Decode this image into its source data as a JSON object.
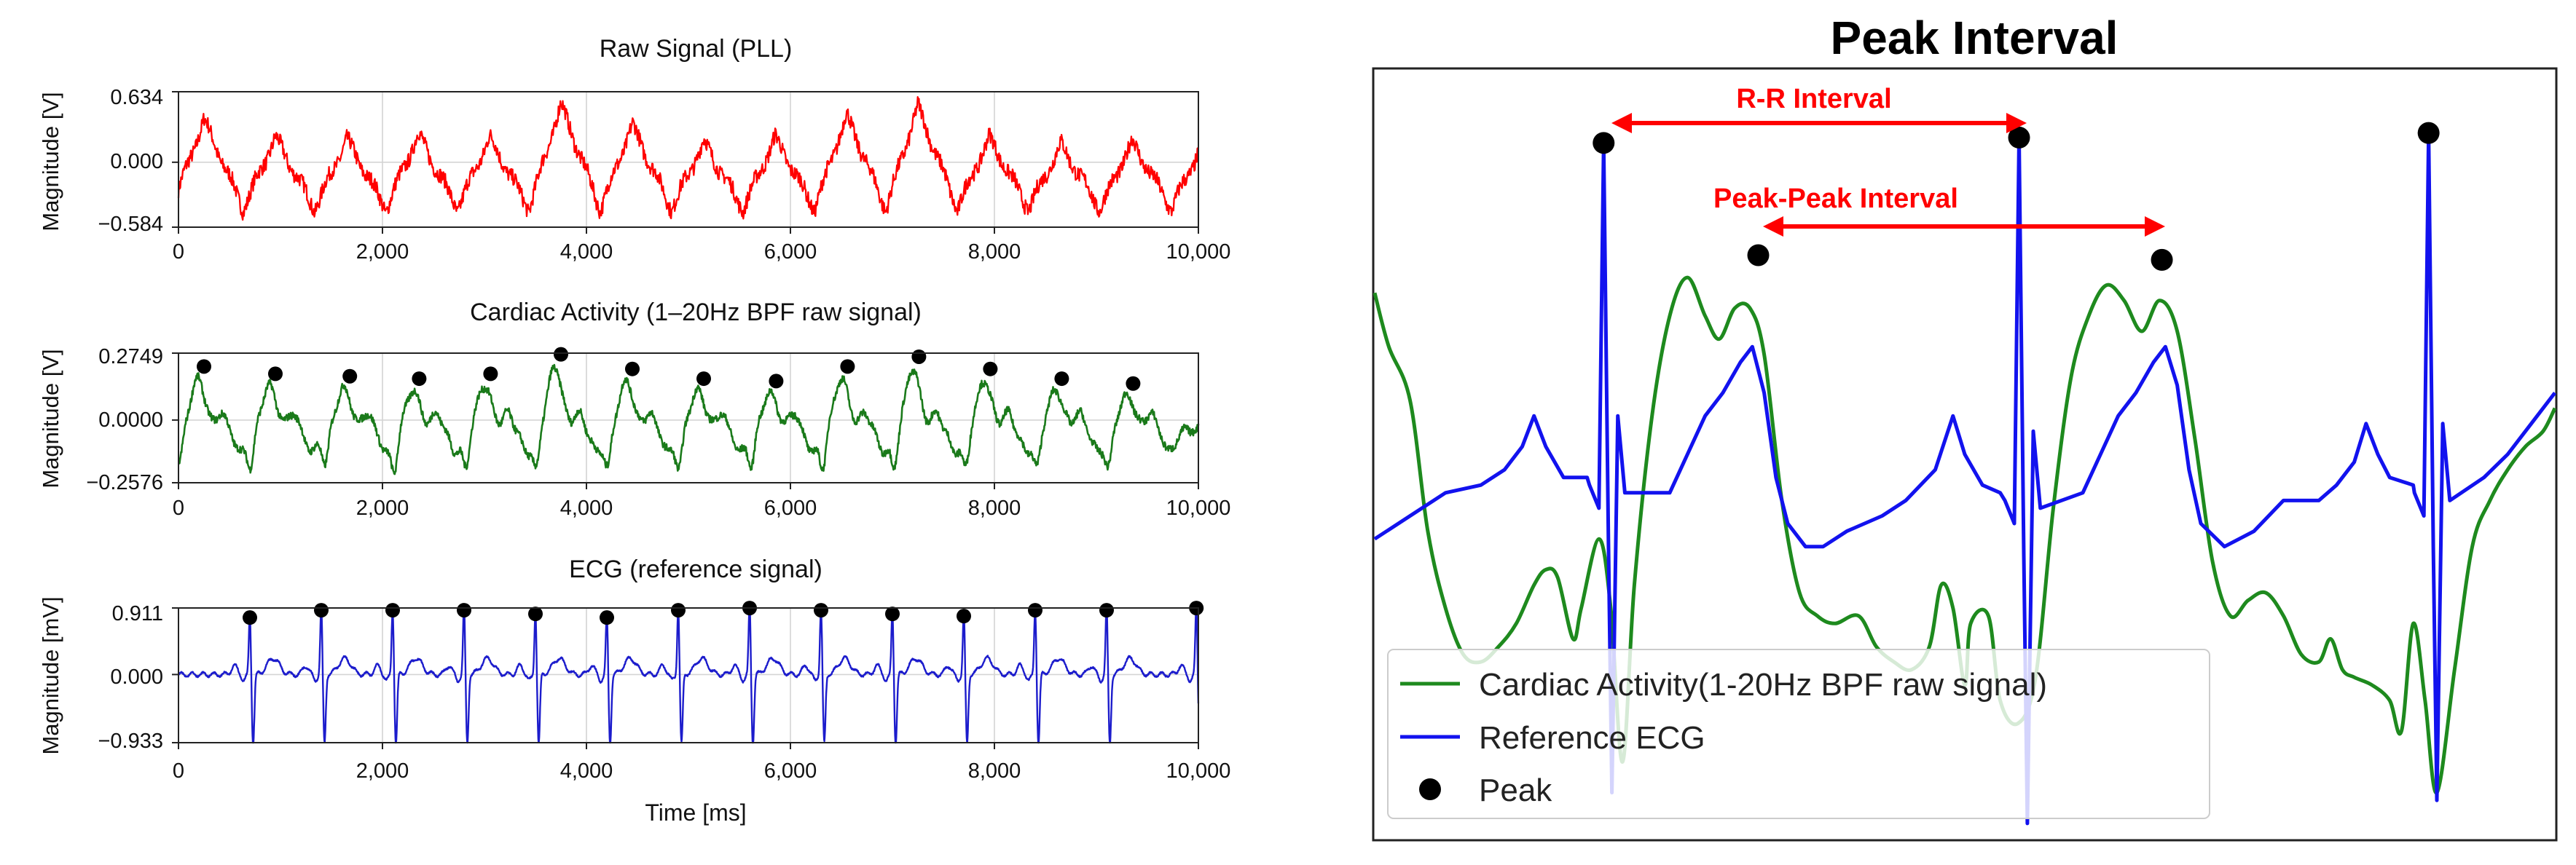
{
  "chart_data": [
    {
      "type": "line",
      "title": "Raw Signal (PLL)",
      "ylabel": "Magnitude [V]",
      "xlabel": "",
      "xlim": [
        0,
        10000
      ],
      "ylim": [
        -0.584,
        0.634
      ],
      "xticks": [
        0,
        2000,
        4000,
        6000,
        8000,
        10000
      ],
      "xtick_labels": [
        "0",
        "2,000",
        "4,000",
        "6,000",
        "8,000",
        "10,000"
      ],
      "yticks": [
        0.634,
        0.0,
        -0.584
      ],
      "ytick_labels": [
        "0.634",
        "0.000",
        "−0.584"
      ],
      "grid": true,
      "series": [
        {
          "name": "Raw Signal",
          "color": "#ff0000",
          "beat_times": [
            250,
            950,
            1650,
            2350,
            3050,
            3750,
            4450,
            5150,
            5850,
            6550,
            7250,
            7950,
            8650,
            9350
          ],
          "beat_amps": [
            0.38,
            0.22,
            0.2,
            0.25,
            0.22,
            0.52,
            0.33,
            0.18,
            0.22,
            0.42,
            0.5,
            0.22,
            0.16,
            0.18
          ],
          "trough": -0.42,
          "noise": 0.07
        }
      ]
    },
    {
      "type": "line",
      "title": "Cardiac Activity (1–20Hz BPF raw signal)",
      "ylabel": "Magnitude [V]",
      "xlabel": "",
      "xlim": [
        0,
        10000
      ],
      "ylim": [
        -0.2576,
        0.2749
      ],
      "xticks": [
        0,
        2000,
        4000,
        6000,
        8000,
        10000
      ],
      "xtick_labels": [
        "0",
        "2,000",
        "4,000",
        "6,000",
        "8,000",
        "10,000"
      ],
      "yticks": [
        0.2749,
        0.0,
        -0.2576
      ],
      "ytick_labels": [
        "0.2749",
        "0.0000",
        "−0.2576"
      ],
      "grid": true,
      "series": [
        {
          "name": "Cardiac Activity",
          "color": "#1a7a1a",
          "peaks_x": [
            250,
            950,
            1680,
            2360,
            3060,
            3750,
            4450,
            5150,
            5860,
            6560,
            7260,
            7960,
            8660,
            9360
          ],
          "peaks_y": [
            0.22,
            0.19,
            0.18,
            0.17,
            0.19,
            0.27,
            0.21,
            0.17,
            0.16,
            0.22,
            0.26,
            0.21,
            0.17,
            0.15
          ]
        }
      ]
    },
    {
      "type": "line",
      "title": "ECG (reference signal)",
      "ylabel": "Magnitude [mV]",
      "xlabel": "Time [ms]",
      "xlim": [
        0,
        10000
      ],
      "ylim": [
        -0.933,
        0.911
      ],
      "xticks": [
        0,
        2000,
        4000,
        6000,
        8000,
        10000
      ],
      "xtick_labels": [
        "0",
        "2,000",
        "4,000",
        "6,000",
        "8,000",
        "10,000"
      ],
      "yticks": [
        0.911,
        0.0,
        -0.933
      ],
      "ytick_labels": [
        "0.911",
        "0.000",
        "−0.933"
      ],
      "grid": true,
      "series": [
        {
          "name": "ECG",
          "color": "#1c1ccc",
          "peaks_x": [
            700,
            1400,
            2100,
            2800,
            3500,
            4200,
            4900,
            5600,
            6300,
            7000,
            7700,
            8400,
            9100,
            9980
          ],
          "peaks_y": [
            0.78,
            0.88,
            0.88,
            0.88,
            0.83,
            0.78,
            0.88,
            0.91,
            0.88,
            0.83,
            0.8,
            0.88,
            0.88,
            0.91
          ]
        }
      ]
    },
    {
      "type": "line",
      "title": "Peak Interval",
      "annotations": [
        "R-R Interval",
        "Peak-Peak Interval"
      ],
      "legend": [
        "Cardiac Activity(1-20Hz BPF raw signal)",
        "Reference ECG",
        "Peak"
      ],
      "legend_position": "bottom-left",
      "xlim": [
        0,
        1
      ],
      "ylim": [
        0,
        1
      ],
      "series": [
        {
          "name": "Cardiac Activity(1-20Hz BPF raw signal)",
          "color": "#1e8a1e",
          "points": [
            [
              0.0,
              0.71
            ],
            [
              0.012,
              0.64
            ],
            [
              0.03,
              0.57
            ],
            [
              0.045,
              0.4
            ],
            [
              0.06,
              0.3
            ],
            [
              0.075,
              0.24
            ],
            [
              0.09,
              0.23
            ],
            [
              0.105,
              0.25
            ],
            [
              0.12,
              0.28
            ],
            [
              0.135,
              0.33
            ],
            [
              0.145,
              0.35
            ],
            [
              0.155,
              0.34
            ],
            [
              0.168,
              0.26
            ],
            [
              0.175,
              0.3
            ],
            [
              0.19,
              0.39
            ],
            [
              0.2,
              0.3
            ],
            [
              0.21,
              0.1
            ],
            [
              0.22,
              0.33
            ],
            [
              0.235,
              0.55
            ],
            [
              0.25,
              0.68
            ],
            [
              0.265,
              0.73
            ],
            [
              0.28,
              0.68
            ],
            [
              0.292,
              0.65
            ],
            [
              0.305,
              0.69
            ],
            [
              0.318,
              0.69
            ],
            [
              0.33,
              0.63
            ],
            [
              0.345,
              0.44
            ],
            [
              0.36,
              0.32
            ],
            [
              0.375,
              0.29
            ],
            [
              0.39,
              0.28
            ],
            [
              0.41,
              0.29
            ],
            [
              0.425,
              0.25
            ],
            [
              0.44,
              0.23
            ],
            [
              0.455,
              0.22
            ],
            [
              0.47,
              0.25
            ],
            [
              0.48,
              0.33
            ],
            [
              0.49,
              0.3
            ],
            [
              0.5,
              0.2
            ],
            [
              0.505,
              0.28
            ],
            [
              0.52,
              0.29
            ],
            [
              0.53,
              0.18
            ],
            [
              0.545,
              0.15
            ],
            [
              0.56,
              0.21
            ],
            [
              0.575,
              0.43
            ],
            [
              0.59,
              0.6
            ],
            [
              0.605,
              0.68
            ],
            [
              0.62,
              0.72
            ],
            [
              0.635,
              0.7
            ],
            [
              0.65,
              0.66
            ],
            [
              0.665,
              0.7
            ],
            [
              0.68,
              0.66
            ],
            [
              0.695,
              0.52
            ],
            [
              0.71,
              0.36
            ],
            [
              0.725,
              0.29
            ],
            [
              0.74,
              0.31
            ],
            [
              0.755,
              0.32
            ],
            [
              0.77,
              0.29
            ],
            [
              0.785,
              0.24
            ],
            [
              0.8,
              0.23
            ],
            [
              0.81,
              0.26
            ],
            [
              0.82,
              0.22
            ],
            [
              0.83,
              0.21
            ],
            [
              0.845,
              0.2
            ],
            [
              0.86,
              0.18
            ],
            [
              0.87,
              0.14
            ],
            [
              0.88,
              0.28
            ],
            [
              0.89,
              0.18
            ],
            [
              0.9,
              0.06
            ],
            [
              0.915,
              0.22
            ],
            [
              0.93,
              0.38
            ],
            [
              0.945,
              0.44
            ],
            [
              0.96,
              0.48
            ],
            [
              0.975,
              0.51
            ],
            [
              0.99,
              0.53
            ],
            [
              1.0,
              0.56
            ]
          ]
        },
        {
          "name": "Reference ECG",
          "color": "#1212ee",
          "beats_x": [
            0.194,
            0.546,
            0.893
          ],
          "beats_peak_y": [
            0.905,
            0.912,
            0.918
          ],
          "beats_min_y": [
            0.06,
            0.02,
            0.05
          ],
          "baseline_points": [
            [
              0.0,
              0.39
            ],
            [
              0.03,
              0.42
            ],
            [
              0.06,
              0.45
            ],
            [
              0.09,
              0.46
            ],
            [
              0.11,
              0.48
            ],
            [
              0.125,
              0.51
            ],
            [
              0.135,
              0.55
            ],
            [
              0.145,
              0.51
            ],
            [
              0.16,
              0.47
            ],
            [
              0.18,
              0.47
            ],
            [
              0.23,
              0.45
            ],
            [
              0.25,
              0.45
            ],
            [
              0.265,
              0.5
            ],
            [
              0.28,
              0.55
            ],
            [
              0.295,
              0.58
            ],
            [
              0.31,
              0.62
            ],
            [
              0.32,
              0.64
            ],
            [
              0.33,
              0.58
            ],
            [
              0.34,
              0.47
            ],
            [
              0.35,
              0.41
            ],
            [
              0.365,
              0.38
            ],
            [
              0.38,
              0.38
            ],
            [
              0.4,
              0.4
            ],
            [
              0.43,
              0.42
            ],
            [
              0.45,
              0.44
            ],
            [
              0.475,
              0.48
            ],
            [
              0.49,
              0.55
            ],
            [
              0.5,
              0.5
            ],
            [
              0.515,
              0.46
            ],
            [
              0.53,
              0.45
            ],
            [
              0.6,
              0.45
            ],
            [
              0.615,
              0.5
            ],
            [
              0.63,
              0.55
            ],
            [
              0.645,
              0.58
            ],
            [
              0.66,
              0.62
            ],
            [
              0.67,
              0.64
            ],
            [
              0.68,
              0.59
            ],
            [
              0.69,
              0.48
            ],
            [
              0.7,
              0.41
            ],
            [
              0.72,
              0.38
            ],
            [
              0.745,
              0.4
            ],
            [
              0.77,
              0.44
            ],
            [
              0.8,
              0.44
            ],
            [
              0.815,
              0.46
            ],
            [
              0.83,
              0.49
            ],
            [
              0.84,
              0.54
            ],
            [
              0.85,
              0.5
            ],
            [
              0.86,
              0.47
            ],
            [
              0.88,
              0.46
            ],
            [
              0.94,
              0.47
            ],
            [
              0.96,
              0.5
            ],
            [
              0.98,
              0.54
            ],
            [
              1.0,
              0.58
            ]
          ]
        }
      ],
      "peaks": [
        [
          0.194,
          0.905
        ],
        [
          0.546,
          0.912
        ],
        [
          0.893,
          0.918
        ],
        [
          0.325,
          0.759
        ],
        [
          0.667,
          0.753
        ]
      ]
    }
  ]
}
